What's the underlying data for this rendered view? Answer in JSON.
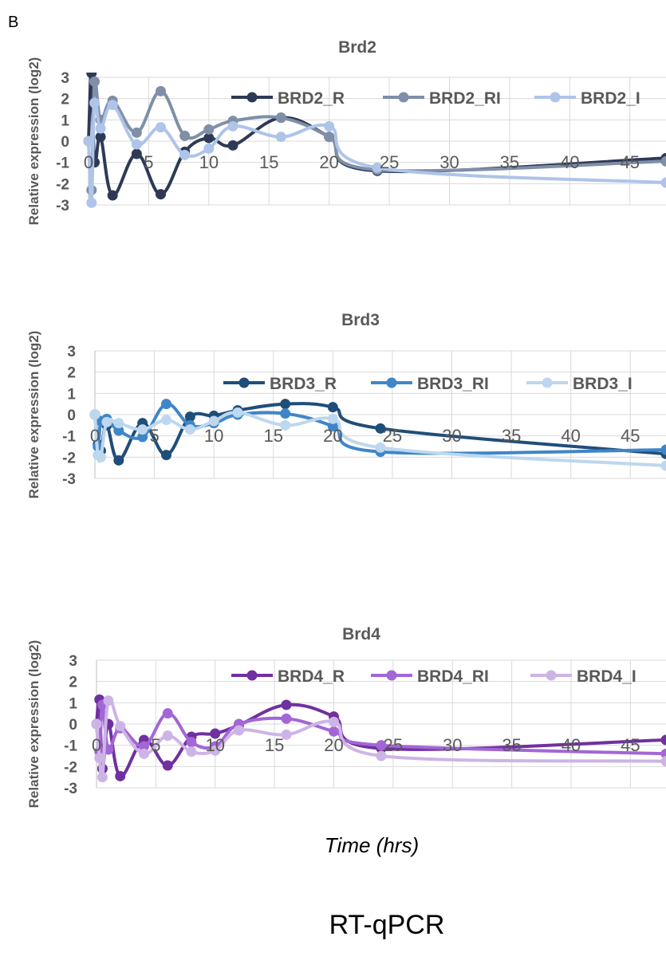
{
  "panel_letter": "B",
  "xlabel": "Time (hrs)",
  "caption": "RT-qPCR",
  "chart_data": [
    {
      "type": "line",
      "title": "Brd2",
      "ylabel": "Relative expression (log2)",
      "xlabel": "",
      "xlim": [
        0,
        48
      ],
      "ylim": [
        -3,
        3
      ],
      "x_ticks": [
        0,
        5,
        10,
        15,
        20,
        25,
        30,
        35,
        40,
        45
      ],
      "y_ticks": [
        -3,
        -2,
        -1,
        0,
        1,
        2,
        3
      ],
      "legend_position": "top-right",
      "series": [
        {
          "name": "BRD2_R",
          "color": "#2e3a55",
          "x": [
            0,
            0.25,
            0.5,
            1,
            2,
            4,
            6,
            8,
            10,
            12,
            16,
            20,
            24,
            48
          ],
          "y": [
            0,
            3.2,
            -1,
            0.2,
            -2.55,
            -0.6,
            -2.5,
            -0.5,
            0.15,
            -0.2,
            1.1,
            0.2,
            -1.4,
            -0.8
          ]
        },
        {
          "name": "BRD2_RI",
          "color": "#7f8fa8",
          "x": [
            0,
            0.25,
            0.5,
            1,
            2,
            4,
            6,
            8,
            10,
            12,
            16,
            20,
            24,
            48
          ],
          "y": [
            0,
            -2.3,
            2.8,
            1.0,
            1.9,
            0.4,
            2.35,
            0.25,
            0.55,
            0.95,
            1.1,
            0.2,
            -1.35,
            -0.95
          ]
        },
        {
          "name": "BRD2_I",
          "color": "#aec4e8",
          "x": [
            0,
            0.25,
            0.5,
            1,
            2,
            4,
            6,
            8,
            10,
            12,
            16,
            20,
            24,
            48
          ],
          "y": [
            0,
            -2.9,
            1.8,
            0.6,
            1.7,
            -0.15,
            0.65,
            -0.65,
            -0.35,
            0.7,
            0.2,
            0.7,
            -1.25,
            -1.95
          ]
        }
      ]
    },
    {
      "type": "line",
      "title": "Brd3",
      "ylabel": "Relative expression (log2)",
      "xlabel": "",
      "xlim": [
        0,
        48
      ],
      "ylim": [
        -3,
        3
      ],
      "x_ticks": [
        0,
        5,
        10,
        15,
        20,
        25,
        30,
        35,
        40,
        45
      ],
      "y_ticks": [
        -3,
        -2,
        -1,
        0,
        1,
        2,
        3
      ],
      "legend_position": "top-right",
      "series": [
        {
          "name": "BRD3_R",
          "color": "#1f4e79",
          "x": [
            0,
            0.25,
            0.5,
            1,
            2,
            4,
            6,
            8,
            10,
            12,
            16,
            20,
            24,
            48
          ],
          "y": [
            0,
            -1.4,
            -1.7,
            -0.5,
            -2.15,
            -0.4,
            -1.9,
            -0.1,
            -0.05,
            0.2,
            0.5,
            0.35,
            -0.65,
            -1.85
          ]
        },
        {
          "name": "BRD3_RI",
          "color": "#3f86c8",
          "x": [
            0,
            0.25,
            0.5,
            1,
            2,
            4,
            6,
            8,
            10,
            12,
            16,
            20,
            24,
            48
          ],
          "y": [
            0,
            -1.5,
            -0.3,
            -0.2,
            -0.75,
            -1.05,
            0.5,
            -0.5,
            -0.4,
            0,
            0.05,
            -0.55,
            -1.75,
            -1.65
          ]
        },
        {
          "name": "BRD3_I",
          "color": "#bdd7ee",
          "x": [
            0,
            0.25,
            0.5,
            1,
            2,
            4,
            6,
            8,
            10,
            12,
            16,
            20,
            24,
            48
          ],
          "y": [
            0,
            -1.9,
            -2.0,
            -0.35,
            -0.4,
            -0.7,
            -0.25,
            -0.7,
            -0.3,
            0.1,
            -0.5,
            -0.2,
            -1.55,
            -2.4
          ]
        }
      ]
    },
    {
      "type": "line",
      "title": "Brd4",
      "ylabel": "Relative expression (log2)",
      "xlabel": "",
      "xlim": [
        0,
        48
      ],
      "ylim": [
        -3,
        3
      ],
      "x_ticks": [
        0,
        5,
        10,
        15,
        20,
        25,
        30,
        35,
        40,
        45
      ],
      "y_ticks": [
        -3,
        -2,
        -1,
        0,
        1,
        2,
        3
      ],
      "legend_position": "top-right",
      "series": [
        {
          "name": "BRD4_R",
          "color": "#7030a0",
          "x": [
            0,
            0.25,
            0.5,
            1,
            2,
            4,
            6,
            8,
            10,
            12,
            16,
            20,
            24,
            48
          ],
          "y": [
            0,
            1.15,
            -2.1,
            0,
            -2.45,
            -0.75,
            -1.95,
            -0.6,
            -0.45,
            -0.05,
            0.9,
            0.35,
            -1.15,
            -0.75
          ]
        },
        {
          "name": "BRD4_RI",
          "color": "#a366d6",
          "x": [
            0,
            0.25,
            0.5,
            1,
            2,
            4,
            6,
            8,
            10,
            12,
            16,
            20,
            24,
            48
          ],
          "y": [
            0,
            -1.3,
            0.9,
            -1.2,
            -0.2,
            -1.05,
            0.5,
            -0.85,
            -1.05,
            0,
            0.25,
            -0.35,
            -1.0,
            -1.4
          ]
        },
        {
          "name": "BRD4_I",
          "color": "#cdb4e6",
          "x": [
            0,
            0.25,
            0.5,
            1,
            2,
            4,
            6,
            8,
            10,
            12,
            16,
            20,
            24,
            48
          ],
          "y": [
            0,
            -1.6,
            -2.5,
            1.1,
            -0.1,
            -1.4,
            -0.55,
            -1.3,
            -1.25,
            -0.3,
            -0.5,
            0.1,
            -1.5,
            -1.75
          ]
        }
      ]
    }
  ]
}
